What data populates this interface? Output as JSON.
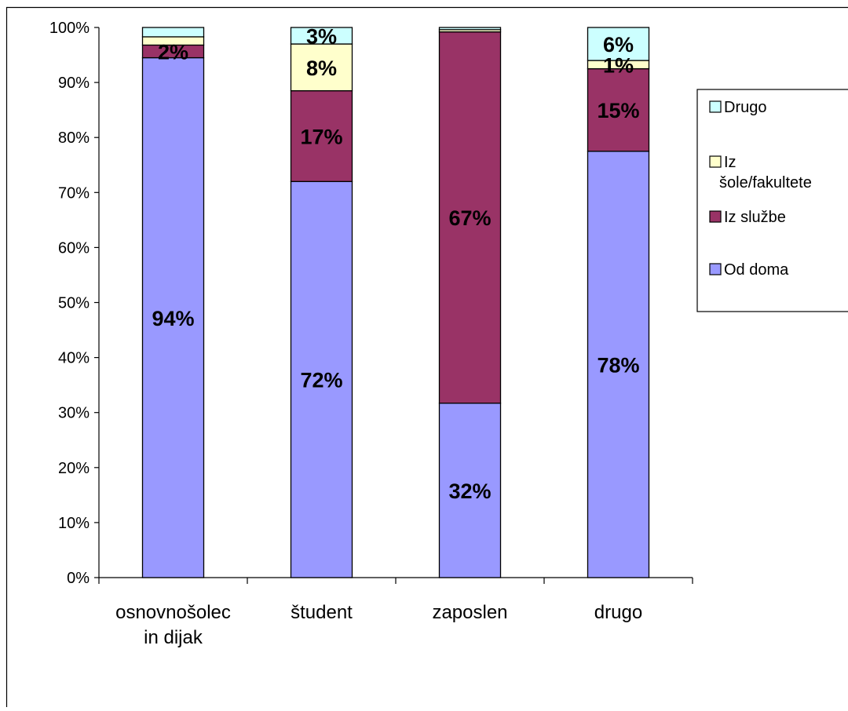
{
  "chart_data": {
    "type": "bar",
    "stacked": true,
    "percent_stacked": true,
    "title": "",
    "xlabel": "",
    "ylabel": "",
    "ylim": [
      0,
      100
    ],
    "y_ticks": [
      "0%",
      "10%",
      "20%",
      "30%",
      "40%",
      "50%",
      "60%",
      "70%",
      "80%",
      "90%",
      "100%"
    ],
    "categories": [
      [
        "osnovnošolec",
        "in dijak"
      ],
      [
        "študent"
      ],
      [
        "zaposlen"
      ],
      [
        "drugo"
      ]
    ],
    "series": [
      {
        "name": "Od doma",
        "color": "#9999ff",
        "values": [
          94.5,
          72,
          31.7,
          77.5
        ],
        "labels": [
          "94%",
          "72%",
          "32%",
          "78%"
        ]
      },
      {
        "name": "Iz službe",
        "color": "#993366",
        "values": [
          2.3,
          16.5,
          67.5,
          15
        ],
        "labels": [
          "2%",
          "17%",
          "67%",
          "15%"
        ]
      },
      {
        "name": "Iz šole/fakultete",
        "color": "#ffffcc",
        "values": [
          1.5,
          8.5,
          0.4,
          1.5
        ],
        "labels": [
          "",
          "8%",
          "",
          "1%"
        ]
      },
      {
        "name": "Drugo",
        "color": "#ccffff",
        "values": [
          1.7,
          3,
          0.4,
          6
        ],
        "labels": [
          "",
          "3%",
          "",
          "6%"
        ]
      }
    ],
    "legend": {
      "placement": "right",
      "entries": [
        {
          "lines": [
            "Drugo"
          ],
          "color": "#ccffff"
        },
        {
          "lines": [
            "Iz",
            "šole/fakultete"
          ],
          "color": "#ffffcc"
        },
        {
          "lines": [
            "Iz službe"
          ],
          "color": "#993366"
        },
        {
          "lines": [
            "Od doma"
          ],
          "color": "#9999ff"
        }
      ]
    },
    "grid": false
  }
}
